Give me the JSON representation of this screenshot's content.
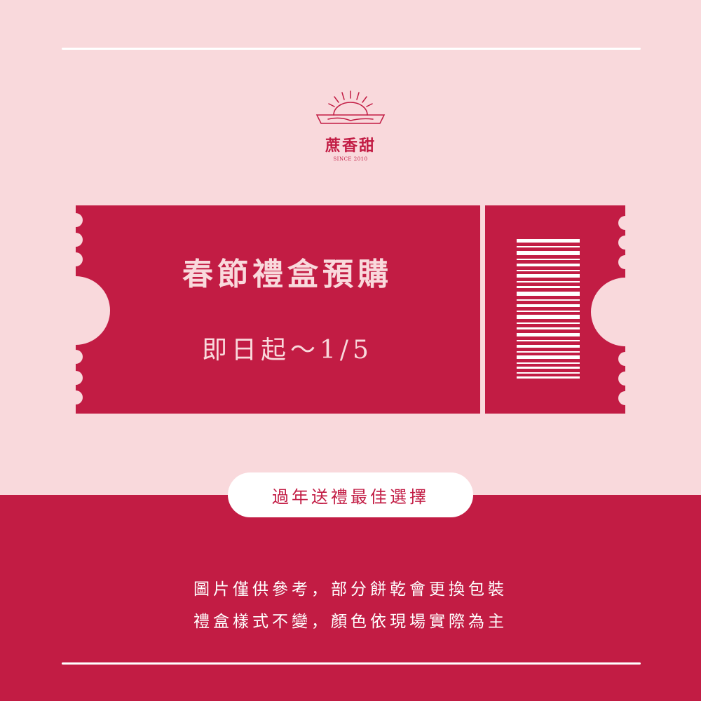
{
  "colors": {
    "background_pink": "#f9d9dc",
    "brand_red": "#c21c44",
    "white": "#ffffff"
  },
  "logo": {
    "name": "蔗香甜",
    "since": "SINCE 2010",
    "icon": "sunrise-logo-icon"
  },
  "ticket": {
    "title": "春節禮盒預購",
    "date_range": "即日起～1/5",
    "barcode_icon": "barcode-icon"
  },
  "banner": {
    "text": "過年送禮最佳選擇"
  },
  "notes": [
    "圖片僅供參考，部分餅乾會更換包裝",
    "禮盒樣式不變，顏色依現場實際為主"
  ]
}
